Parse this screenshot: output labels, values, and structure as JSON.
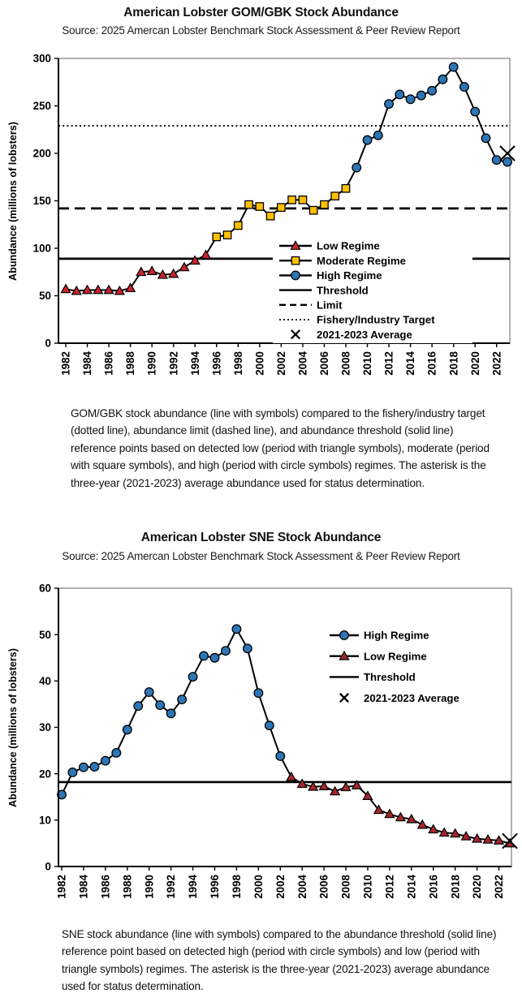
{
  "colors": {
    "high_regime_blue": "#2E75B6",
    "moderate_regime_gold": "#FFC000",
    "low_regime_red": "#C9242B",
    "low_regime_dark_red": "#A6262C",
    "line_black": "#000000",
    "plot_border_gray": "#909090"
  },
  "charts": [
    {
      "chart_data": {
        "type": "line",
        "title": "American Lobster GOM/GBK Stock Abundance",
        "source": "Source: 2025 Amercan Lobster Benchmark Stock Assessment & Peer Review Report",
        "ylabel": "Abundance (millions of lobsters)",
        "ylim": [
          0,
          300
        ],
        "ytick_step": 50,
        "x_start": 1982,
        "x_end": 2023,
        "xtick_labels": [
          "1982",
          "1984",
          "1986",
          "1988",
          "1990",
          "1992",
          "1994",
          "1996",
          "1998",
          "2000",
          "2002",
          "2004",
          "2006",
          "2008",
          "2010",
          "2012",
          "2014",
          "2016",
          "2018",
          "2020",
          "2022"
        ],
        "grid": false,
        "legend_position": "inside lower right",
        "series": [
          {
            "name": "Low Regime",
            "marker": "triangle",
            "color": "#C9242B",
            "start_year": 1982,
            "values": [
              57,
              55,
              56,
              56,
              56,
              55,
              58,
              75,
              76,
              72,
              73,
              80,
              87,
              93
            ]
          },
          {
            "name": "Moderate Regime",
            "marker": "square",
            "color": "#FFC000",
            "start_year": 1996,
            "values": [
              112,
              114,
              124,
              146,
              144,
              134,
              143,
              151,
              151,
              140,
              146,
              155,
              163
            ]
          },
          {
            "name": "High Regime",
            "marker": "circle",
            "color": "#2E75B6",
            "start_year": 2009,
            "values": [
              185,
              214,
              219,
              252,
              262,
              257,
              261,
              266,
              278,
              291,
              270,
              244,
              216,
              193,
              191
            ]
          }
        ],
        "reference_lines": [
          {
            "name": "Threshold",
            "style": "solid",
            "value": 89
          },
          {
            "name": "Limit",
            "style": "dashed",
            "value": 142
          },
          {
            "name": "Fishery/Industry Target",
            "style": "dotted",
            "value": 229
          }
        ],
        "average_marker": {
          "name": "2021-2023 Average",
          "year": 2023,
          "value": 200
        }
      },
      "legend": [
        {
          "label": "Low Regime",
          "symbol": "series-triangle",
          "color": "#C9242B"
        },
        {
          "label": "Moderate Regime",
          "symbol": "series-square",
          "color": "#FFC000"
        },
        {
          "label": "High Regime",
          "symbol": "series-circle",
          "color": "#2E75B6"
        },
        {
          "label": "Threshold",
          "symbol": "line-solid"
        },
        {
          "label": "Limit",
          "symbol": "line-dashed"
        },
        {
          "label": "Fishery/Industry Target",
          "symbol": "line-dotted"
        },
        {
          "label": "2021-2023 Average",
          "symbol": "marker-x"
        }
      ],
      "caption": "GOM/GBK stock abundance (line with symbols) compared to the fishery/industry target (dotted line), abundance limit (dashed line), and abundance threshold (solid line) reference points based on detected low (period with triangle symbols), moderate (period with square symbols), and high (period with circle symbols) regimes. The asterisk is the three-year (2021-2023) average abundance used for status determination."
    },
    {
      "chart_data": {
        "type": "line",
        "title": "American Lobster SNE Stock Abundance",
        "source": "Source: 2025 Amercan Lobster Benchmark Stock Assessment & Peer Review Report",
        "ylabel": "Abundance (millions of lobsters)",
        "ylim": [
          0,
          60
        ],
        "ytick_step": 10,
        "x_start": 1982,
        "x_end": 2023,
        "xtick_labels": [
          "1982",
          "1984",
          "1986",
          "1988",
          "1990",
          "1992",
          "1994",
          "1996",
          "1998",
          "2000",
          "2002",
          "2004",
          "2006",
          "2008",
          "2010",
          "2012",
          "2014",
          "2016",
          "2018",
          "2020",
          "2022"
        ],
        "grid": false,
        "legend_position": "inside upper right",
        "series": [
          {
            "name": "High Regime",
            "marker": "circle",
            "color": "#2E75B6",
            "start_year": 1982,
            "values": [
              15.5,
              20.3,
              21.4,
              21.5,
              22.8,
              24.5,
              29.5,
              34.6,
              37.6,
              34.8,
              33.0,
              36.0,
              40.9,
              45.4,
              45.0,
              46.5,
              51.2,
              47.0,
              37.4,
              30.4,
              23.8
            ]
          },
          {
            "name": "Low Regime",
            "marker": "triangle",
            "color": "#A6262C",
            "start_year": 2003,
            "values": [
              19.3,
              17.8,
              17.2,
              17.3,
              16.2,
              17.1,
              17.5,
              15.2,
              12.2,
              11.3,
              10.6,
              10.2,
              9.0,
              8.0,
              7.3,
              7.1,
              6.5,
              6.0,
              5.8,
              5.6,
              5.0
            ]
          }
        ],
        "reference_lines": [
          {
            "name": "Threshold",
            "style": "solid",
            "value": 18.2
          }
        ],
        "average_marker": {
          "name": "2021-2023 Average",
          "year": 2023,
          "value": 5.5
        }
      },
      "legend": [
        {
          "label": "High Regime",
          "symbol": "series-circle",
          "color": "#2E75B6"
        },
        {
          "label": "Low Regime",
          "symbol": "series-triangle",
          "color": "#A6262C"
        },
        {
          "label": "Threshold",
          "symbol": "line-solid"
        },
        {
          "label": "2021-2023 Average",
          "symbol": "marker-x"
        }
      ],
      "caption": "SNE stock abundance (line with symbols) compared to the abundance threshold (solid line) reference point based on detected high (period with circle symbols) and low (period with triangle symbols) regimes. The asterisk is the three-year (2021-2023) average abundance used for status determination."
    }
  ]
}
